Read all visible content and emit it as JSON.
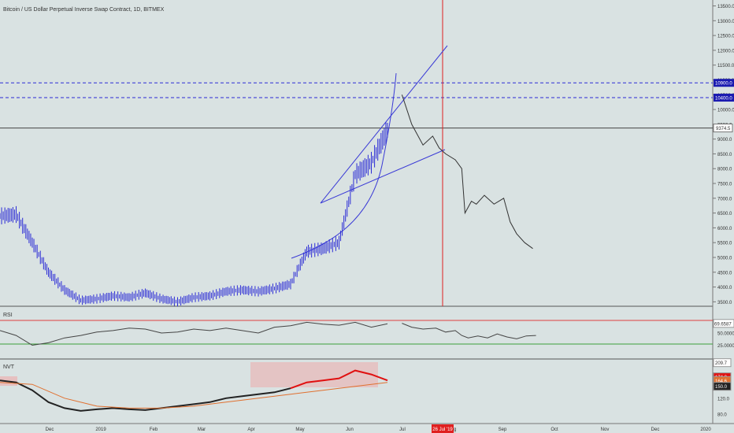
{
  "chart_data": {
    "type": "line",
    "title": "Bitcoin / US Dollar Perpetual Inverse Swap Contract, 1D, BITMEX",
    "colors": {
      "background": "#d9e2e2",
      "price_bars": "#2b2bd6",
      "projection": "#333333",
      "trendlines": "#3a3ad6",
      "dashed_levels": "#2b2bd6",
      "vertical_marker": "#e02020",
      "rsi_line": "#444444",
      "rsi_upper": "#e04040",
      "rsi_lower": "#3aa03a",
      "nvt_black": "#222222",
      "nvt_red": "#e01010",
      "nvt_ma": "#e07030",
      "nvt_highlight": "#e8b8b8"
    },
    "x_axis": {
      "labels": [
        "Dec",
        "2019",
        "Feb",
        "Mar",
        "Apr",
        "May",
        "Jun",
        "Jul",
        "Aug",
        "Sep",
        "Oct",
        "Nov",
        "Dec",
        "2020"
      ],
      "highlight_label": "26 Jul '19"
    },
    "price_panel": {
      "ticks": [
        "13500.0",
        "13000.0",
        "12500.0",
        "12000.0",
        "11500.0",
        "11000.0",
        "10500.0",
        "10000.0",
        "9500.0",
        "9000.0",
        "8500.0",
        "8000.0",
        "7500.0",
        "7000.0",
        "6500.0",
        "6000.0",
        "5500.0",
        "5000.0",
        "4500.0",
        "4000.0",
        "3500.0"
      ],
      "ylim": [
        3350,
        13700
      ],
      "last_price_label": "9374.5",
      "dashed_levels": [
        {
          "value": 10900,
          "label": "10900.0"
        },
        {
          "value": 10400,
          "label": "10400.0"
        }
      ],
      "horizontal_line": 9374.5,
      "series": [
        {
          "name": "price",
          "x_days": [
            0,
            10,
            20,
            30,
            40,
            50,
            60,
            70,
            80,
            90,
            100,
            110,
            120,
            130,
            140,
            150,
            160,
            170,
            180,
            190,
            200,
            210,
            220,
            230,
            240
          ],
          "values": [
            6400,
            6450,
            5500,
            4500,
            3900,
            3550,
            3600,
            3700,
            3650,
            3800,
            3600,
            3500,
            3650,
            3700,
            3850,
            3900,
            3850,
            3950,
            4100,
            5200,
            5300,
            5500,
            7800,
            8200,
            9300
          ]
        },
        {
          "name": "projection",
          "x_days": [
            249,
            255,
            262,
            268,
            272,
            276,
            282,
            286,
            288,
            292,
            295,
            300,
            306,
            312,
            316,
            320,
            325,
            330
          ],
          "values": [
            10500,
            9500,
            8800,
            9100,
            8700,
            8500,
            8300,
            8000,
            6500,
            6900,
            6800,
            7100,
            6800,
            7000,
            6200,
            5800,
            5500,
            5300
          ]
        }
      ]
    },
    "rsi_panel": {
      "label": "RSI",
      "value_label": "69.6587",
      "ticks": [
        "50.0000",
        "25.0000"
      ],
      "upper_level": 70,
      "lower_level": 30,
      "series": [
        {
          "name": "rsi",
          "x_days": [
            0,
            10,
            20,
            30,
            40,
            50,
            60,
            70,
            80,
            90,
            100,
            110,
            120,
            130,
            140,
            150,
            160,
            170,
            180,
            190,
            200,
            210,
            220,
            230,
            240
          ],
          "values": [
            55,
            45,
            25,
            30,
            40,
            45,
            52,
            55,
            60,
            58,
            50,
            52,
            58,
            55,
            60,
            55,
            50,
            62,
            65,
            72,
            68,
            66,
            72,
            62,
            69
          ]
        },
        {
          "name": "projection",
          "x_days": [
            249,
            255,
            262,
            270,
            276,
            282,
            286,
            290,
            296,
            302,
            308,
            314,
            320,
            326,
            332
          ],
          "values": [
            70,
            62,
            58,
            60,
            52,
            55,
            45,
            40,
            44,
            40,
            48,
            42,
            38,
            44,
            45
          ]
        }
      ]
    },
    "nvt_panel": {
      "label": "NVT",
      "ticks": [
        "209.7",
        "174.0",
        "164.6",
        "150.0",
        "120.0",
        "80.0"
      ],
      "ylim": [
        60,
        215
      ],
      "series": [
        {
          "name": "nvt",
          "x_days": [
            0,
            10,
            20,
            30,
            40,
            50,
            60,
            70,
            80,
            90,
            100,
            110,
            120,
            130,
            140,
            150,
            160,
            170,
            180,
            190,
            200,
            210,
            220,
            230,
            240
          ],
          "values": [
            165,
            160,
            140,
            110,
            95,
            88,
            92,
            95,
            92,
            90,
            95,
            100,
            105,
            110,
            120,
            125,
            130,
            135,
            145,
            160,
            165,
            170,
            190,
            180,
            165
          ]
        },
        {
          "name": "ma",
          "x_days": [
            0,
            20,
            40,
            60,
            80,
            100,
            120,
            140,
            160,
            180,
            200,
            220,
            240
          ],
          "values": [
            160,
            155,
            120,
            100,
            95,
            95,
            100,
            110,
            120,
            130,
            140,
            150,
            160
          ]
        }
      ]
    }
  }
}
